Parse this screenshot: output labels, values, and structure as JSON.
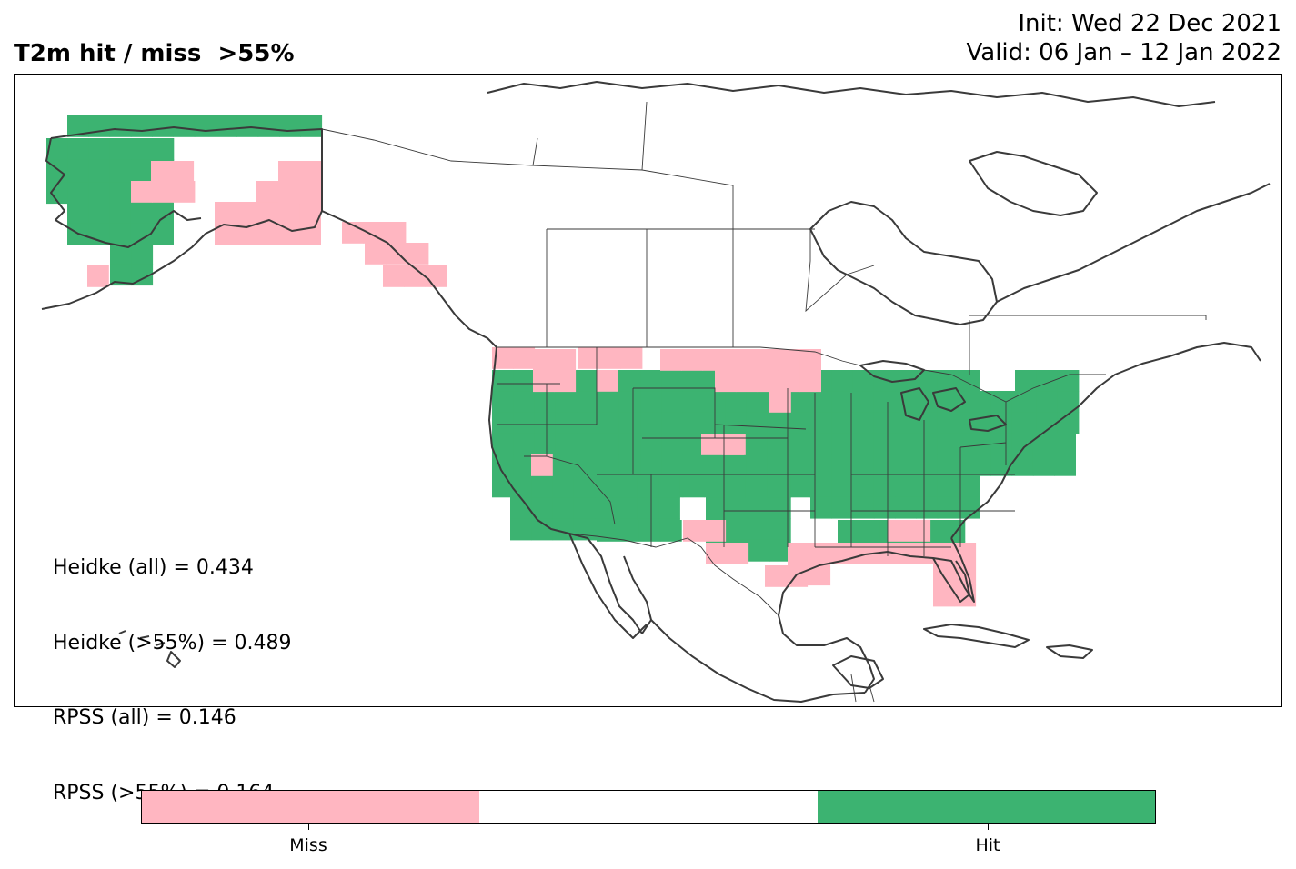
{
  "title": "T2m hit / miss  >55%",
  "init": "Init: Wed 22 Dec 2021",
  "valid": "Valid: 06 Jan – 12 Jan 2022",
  "stats": [
    "Heidke (all) = 0.434",
    "Heidke (>55%) = 0.489",
    "RPSS (all) = 0.146",
    "RPSS (>55%) = 0.164"
  ],
  "legend": {
    "miss_label": "Miss",
    "hit_label": "Hit",
    "miss_color": "#ffb6c1",
    "neutral_color": "#ffffff",
    "hit_color": "#3cb371"
  },
  "map": {
    "region": "North America",
    "hit_color": "#3cb371",
    "miss_color": "#ffb6c1",
    "coast_color": "#3a3a3a"
  }
}
